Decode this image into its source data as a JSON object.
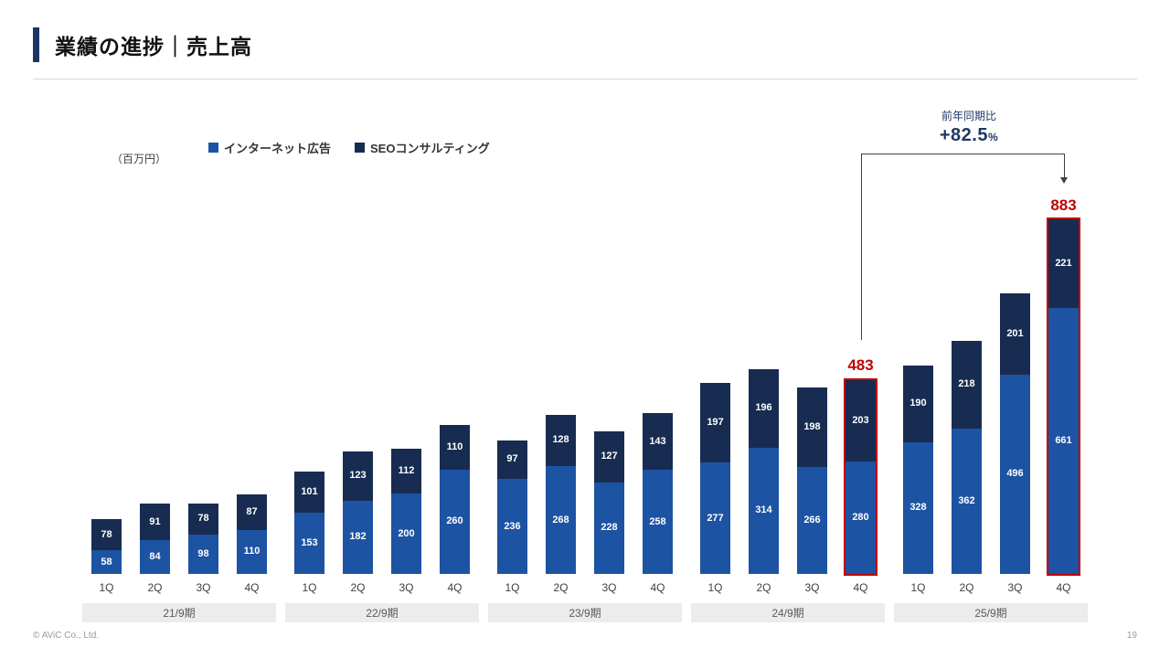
{
  "slide": {
    "title": "業績の進捗｜売上高",
    "unit_label": "（百万円）",
    "footer": "© AViC Co., Ltd.",
    "page_number": "19"
  },
  "annotation": {
    "line1": "前年同期比",
    "value": "+82.5",
    "percent_sign": "%"
  },
  "chart_data": {
    "type": "bar",
    "stacked": true,
    "title": "売上高",
    "unit": "百万円",
    "quarter_labels": [
      "1Q",
      "2Q",
      "3Q",
      "4Q"
    ],
    "period_labels": [
      "21/9期",
      "22/9期",
      "23/9期",
      "24/9期",
      "25/9期"
    ],
    "series": [
      {
        "name": "インターネット広告",
        "color": "#1d53a3",
        "values": [
          58,
          84,
          98,
          110,
          153,
          182,
          200,
          260,
          236,
          268,
          228,
          258,
          277,
          314,
          266,
          280,
          328,
          362,
          496,
          661
        ]
      },
      {
        "name": "SEOコンサルティング",
        "color": "#182c52",
        "values": [
          78,
          91,
          78,
          87,
          101,
          123,
          112,
          110,
          97,
          128,
          127,
          143,
          197,
          196,
          198,
          203,
          190,
          218,
          201,
          221
        ]
      }
    ],
    "highlighted_bars": [
      15,
      19
    ],
    "highlight_totals": {
      "15": "483",
      "19": "883"
    },
    "highlight_color": "#c00000",
    "yoy_growth": "+82.5%",
    "legend_position": "top",
    "grid": false,
    "ylim": [
      0,
      950
    ]
  }
}
